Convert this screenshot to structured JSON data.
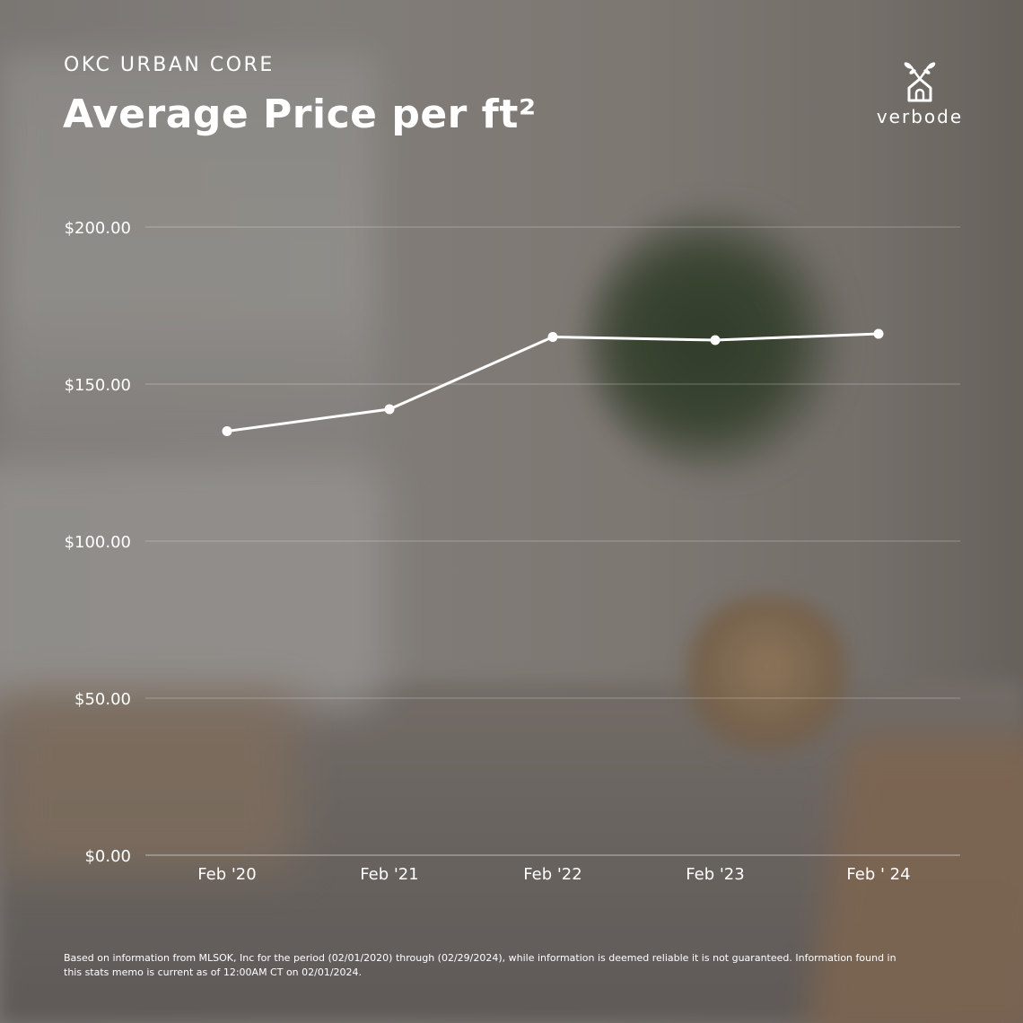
{
  "header": {
    "subtitle": "OKC URBAN CORE",
    "title": "Average Price per ft²"
  },
  "brand": {
    "name": "verbode",
    "icon": "house-sprout-icon"
  },
  "chart_data": {
    "type": "line",
    "title": "Average Price per ft²",
    "categories": [
      "Feb '20",
      "Feb '21",
      "Feb '22",
      "Feb '23",
      "Feb ' 24"
    ],
    "series": [
      {
        "values": [
          135,
          142,
          165,
          164,
          166
        ]
      }
    ],
    "y_ticks": [
      "$0.00",
      "$50.00",
      "$100.00",
      "$150.00",
      "$200.00"
    ],
    "ylim": [
      0,
      200
    ],
    "grid": true,
    "line_color": "#ffffff"
  },
  "footnote": "Based on information from MLSOK, Inc for the period (02/01/2020) through (02/29/2024), while information is deemed reliable it is not guaranteed. Information found in this stats memo is current as of 12:00AM CT on 02/01/2024."
}
